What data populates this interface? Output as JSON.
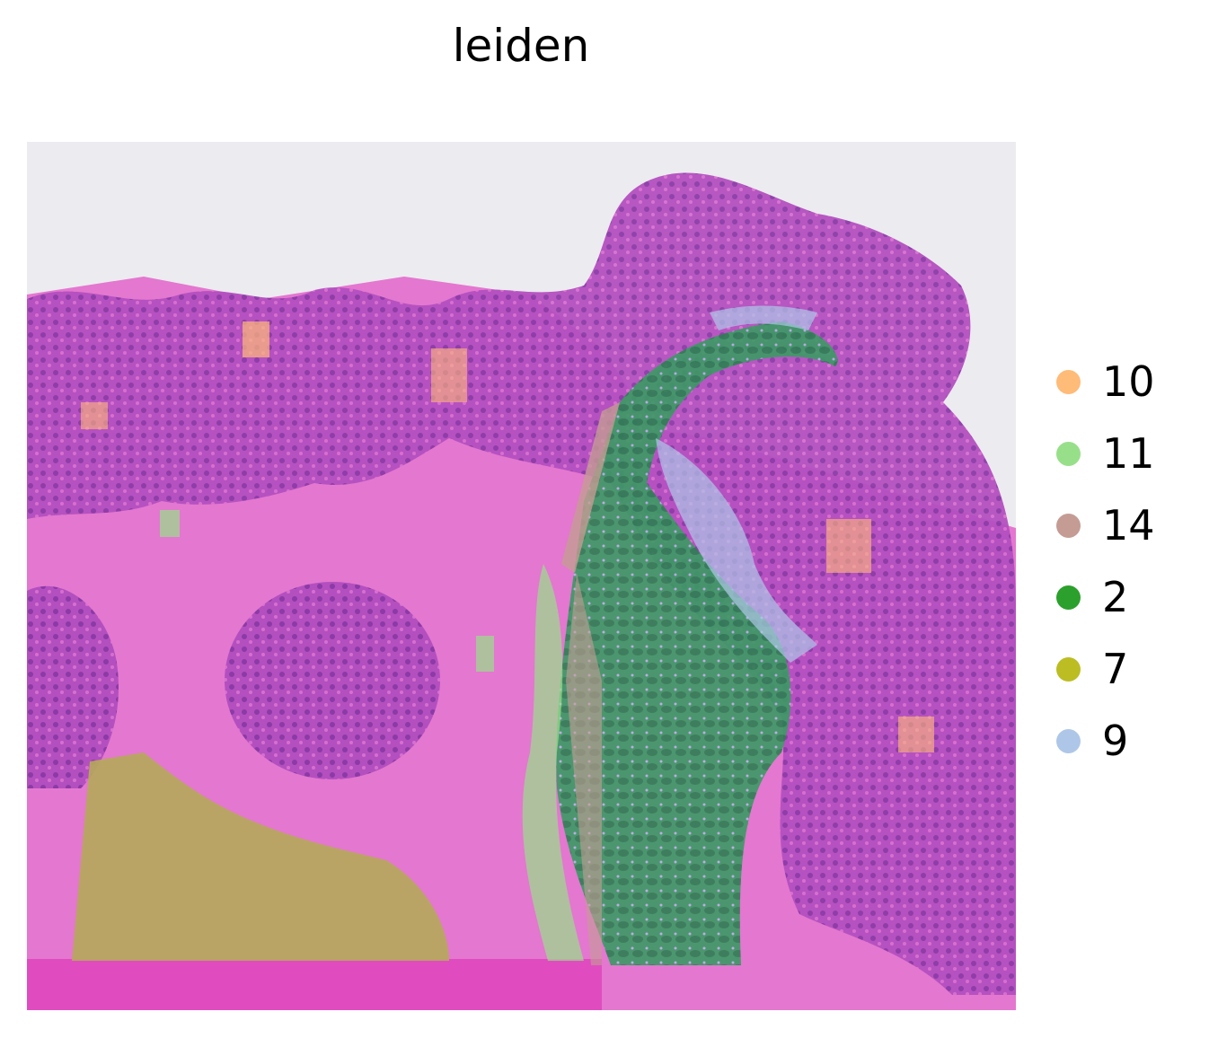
{
  "chart_data": {
    "type": "scatter",
    "title": "leiden",
    "xlabel": "",
    "ylabel": "",
    "grid": false,
    "legend_position": "right",
    "legend": [
      {
        "label": "10",
        "color": "#ffbb78"
      },
      {
        "label": "11",
        "color": "#98df8a"
      },
      {
        "label": "14",
        "color": "#c49c94"
      },
      {
        "label": "2",
        "color": "#2ca02c"
      },
      {
        "label": "7",
        "color": "#bcbd22"
      },
      {
        "label": "9",
        "color": "#aec7e8"
      }
    ],
    "background": "H&E tissue image"
  }
}
